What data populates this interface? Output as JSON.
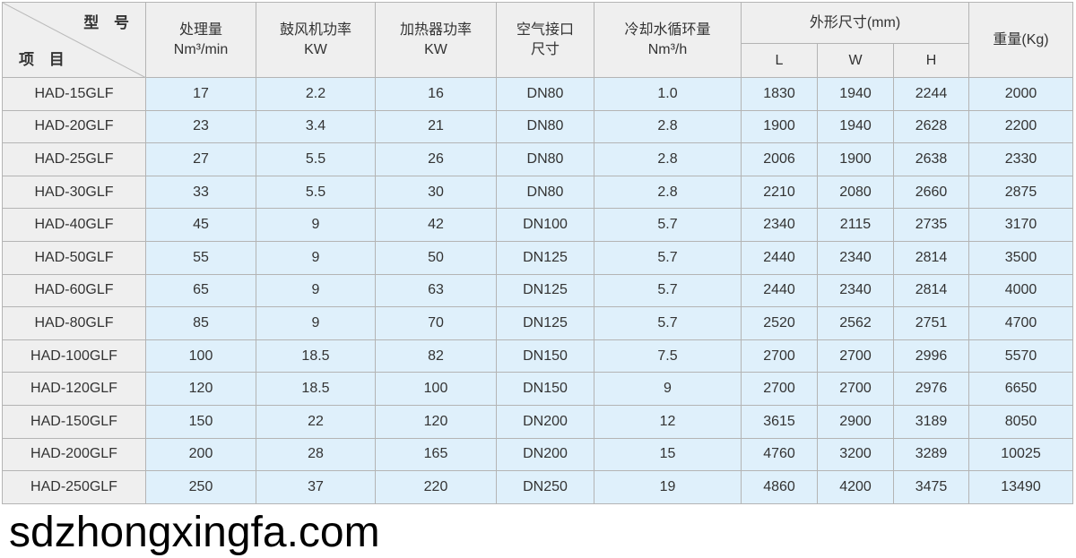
{
  "header": {
    "corner_top": "型 号",
    "corner_bottom": "项 目",
    "columns": [
      {
        "l1": "处理量",
        "l2": "Nm³/min"
      },
      {
        "l1": "鼓风机功率",
        "l2": "KW"
      },
      {
        "l1": "加热器功率",
        "l2": "KW"
      },
      {
        "l1": "空气接口",
        "l2": "尺寸"
      },
      {
        "l1": "冷却水循环量",
        "l2": "Nm³/h"
      }
    ],
    "dims": "外形尺寸(mm)",
    "L": "L",
    "W": "W",
    "H": "H",
    "weight": "重量(Kg)"
  },
  "rows": [
    [
      "HAD-15GLF",
      "17",
      "2.2",
      "16",
      "DN80",
      "1.0",
      "1830",
      "1940",
      "2244",
      "2000"
    ],
    [
      "HAD-20GLF",
      "23",
      "3.4",
      "21",
      "DN80",
      "2.8",
      "1900",
      "1940",
      "2628",
      "2200"
    ],
    [
      "HAD-25GLF",
      "27",
      "5.5",
      "26",
      "DN80",
      "2.8",
      "2006",
      "1900",
      "2638",
      "2330"
    ],
    [
      "HAD-30GLF",
      "33",
      "5.5",
      "30",
      "DN80",
      "2.8",
      "2210",
      "2080",
      "2660",
      "2875"
    ],
    [
      "HAD-40GLF",
      "45",
      "9",
      "42",
      "DN100",
      "5.7",
      "2340",
      "2115",
      "2735",
      "3170"
    ],
    [
      "HAD-50GLF",
      "55",
      "9",
      "50",
      "DN125",
      "5.7",
      "2440",
      "2340",
      "2814",
      "3500"
    ],
    [
      "HAD-60GLF",
      "65",
      "9",
      "63",
      "DN125",
      "5.7",
      "2440",
      "2340",
      "2814",
      "4000"
    ],
    [
      "HAD-80GLF",
      "85",
      "9",
      "70",
      "DN125",
      "5.7",
      "2520",
      "2562",
      "2751",
      "4700"
    ],
    [
      "HAD-100GLF",
      "100",
      "18.5",
      "82",
      "DN150",
      "7.5",
      "2700",
      "2700",
      "2996",
      "5570"
    ],
    [
      "HAD-120GLF",
      "120",
      "18.5",
      "100",
      "DN150",
      "9",
      "2700",
      "2700",
      "2976",
      "6650"
    ],
    [
      "HAD-150GLF",
      "150",
      "22",
      "120",
      "DN200",
      "12",
      "3615",
      "2900",
      "3189",
      "8050"
    ],
    [
      "HAD-200GLF",
      "200",
      "28",
      "165",
      "DN200",
      "15",
      "4760",
      "3200",
      "3289",
      "10025"
    ],
    [
      "HAD-250GLF",
      "250",
      "37",
      "220",
      "DN250",
      "19",
      "4860",
      "4200",
      "3475",
      "13490"
    ]
  ],
  "watermark": "sdzhongxingfa.com"
}
